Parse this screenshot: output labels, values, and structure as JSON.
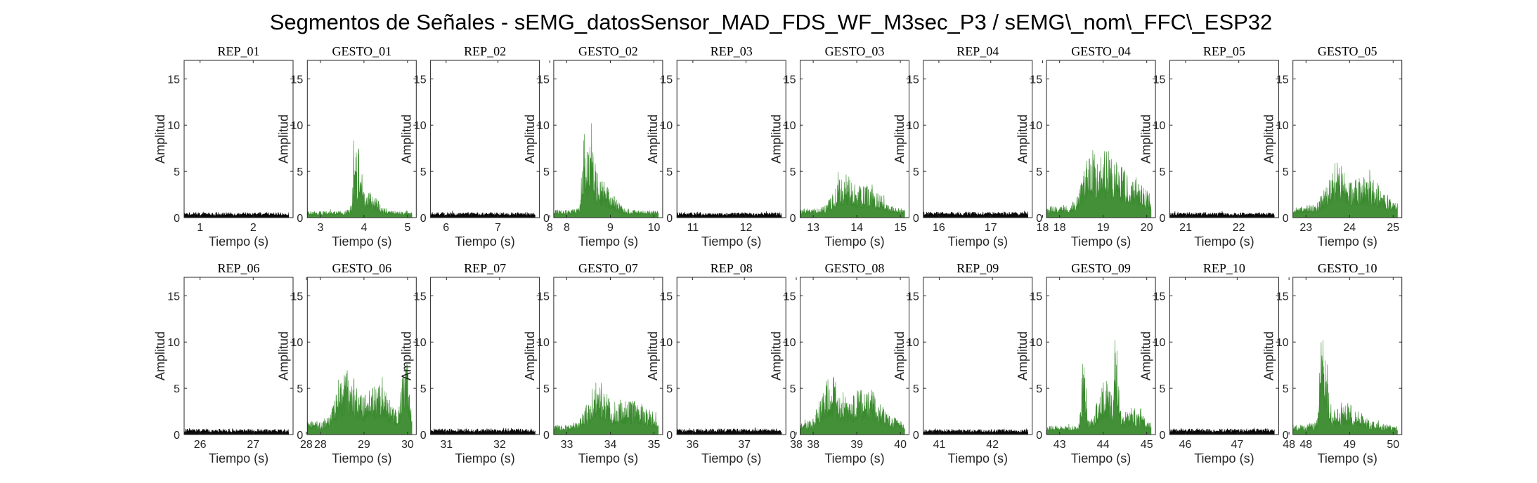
{
  "figure": {
    "title": "Segmentos de Señales - sEMG_datosSensor_MAD_FDS_WF_M3sec_P3 / sEMG\\_nom\\_FFC\\_ESP32",
    "colors": {
      "rep": "#000000",
      "gesture": "#3a8a2e",
      "axis": "#262626"
    }
  },
  "chart_data": [
    {
      "type": "area",
      "title": "REP_01",
      "xlabel": "Tiempo (s)",
      "ylabel": "Amplitud",
      "xlim": [
        0.7,
        2.75
      ],
      "ylim": [
        0,
        17
      ],
      "xticks": [
        1,
        2
      ],
      "yticks": [
        0,
        5,
        10,
        15
      ],
      "color": "#000000",
      "baseline": 0.5,
      "noise": 0.5,
      "bursts": []
    },
    {
      "type": "area",
      "title": "GESTO_01",
      "xlabel": "Tiempo (s)",
      "ylabel": "Amplitud",
      "xlim": [
        2.7,
        5.2
      ],
      "ylim": [
        0,
        17
      ],
      "xticks": [
        3,
        4,
        5
      ],
      "yticks": [
        0,
        5,
        10,
        15
      ],
      "color": "#3a8a2e",
      "baseline": 0.6,
      "noise": 0.7,
      "bursts": [
        {
          "x": 3.78,
          "w": 0.05,
          "a": 10.2
        },
        {
          "x": 3.9,
          "w": 0.06,
          "a": 6.8
        },
        {
          "x": 4.1,
          "w": 0.3,
          "a": 2.2
        }
      ]
    },
    {
      "type": "area",
      "title": "REP_02",
      "xlabel": "Tiempo (s)",
      "ylabel": "Amplitud",
      "xlim": [
        5.7,
        7.8
      ],
      "ylim": [
        0,
        17
      ],
      "xticks": [
        6,
        7,
        8
      ],
      "yticks": [
        0,
        5,
        10,
        15
      ],
      "color": "#000000",
      "baseline": 0.5,
      "noise": 0.5,
      "bursts": []
    },
    {
      "type": "area",
      "title": "GESTO_02",
      "xlabel": "Tiempo (s)",
      "ylabel": "Amplitud",
      "xlim": [
        7.7,
        10.2
      ],
      "ylim": [
        0,
        17
      ],
      "xticks": [
        8,
        9,
        10
      ],
      "yticks": [
        0,
        5,
        10,
        15
      ],
      "color": "#3a8a2e",
      "baseline": 0.7,
      "noise": 0.8,
      "bursts": [
        {
          "x": 8.4,
          "w": 0.06,
          "a": 8.3
        },
        {
          "x": 8.55,
          "w": 0.1,
          "a": 6.8
        },
        {
          "x": 8.8,
          "w": 0.35,
          "a": 3.2
        }
      ]
    },
    {
      "type": "area",
      "title": "REP_03",
      "xlabel": "Tiempo (s)",
      "ylabel": "Amplitud",
      "xlim": [
        10.7,
        12.75
      ],
      "ylim": [
        0,
        17
      ],
      "xticks": [
        11,
        12
      ],
      "yticks": [
        0,
        5,
        10,
        15
      ],
      "color": "#000000",
      "baseline": 0.5,
      "noise": 0.5,
      "bursts": []
    },
    {
      "type": "area",
      "title": "GESTO_03",
      "xlabel": "Tiempo (s)",
      "ylabel": "Amplitud",
      "xlim": [
        12.7,
        15.2
      ],
      "ylim": [
        0,
        17
      ],
      "xticks": [
        13,
        14,
        15
      ],
      "yticks": [
        0,
        5,
        10,
        15
      ],
      "color": "#3a8a2e",
      "baseline": 0.8,
      "noise": 1.2,
      "bursts": [
        {
          "x": 13.7,
          "w": 0.3,
          "a": 3.6
        },
        {
          "x": 14.3,
          "w": 0.35,
          "a": 2.6
        }
      ]
    },
    {
      "type": "area",
      "title": "REP_04",
      "xlabel": "Tiempo (s)",
      "ylabel": "Amplitud",
      "xlim": [
        15.7,
        17.8
      ],
      "ylim": [
        0,
        17
      ],
      "xticks": [
        16,
        17,
        18
      ],
      "yticks": [
        0,
        5,
        10,
        15
      ],
      "color": "#000000",
      "baseline": 0.55,
      "noise": 0.6,
      "bursts": []
    },
    {
      "type": "area",
      "title": "GESTO_04",
      "xlabel": "Tiempo (s)",
      "ylabel": "Amplitud",
      "xlim": [
        17.7,
        20.2
      ],
      "ylim": [
        0,
        17
      ],
      "xticks": [
        18,
        19,
        20
      ],
      "yticks": [
        0,
        5,
        10,
        15
      ],
      "color": "#3a8a2e",
      "baseline": 1.0,
      "noise": 1.5,
      "bursts": [
        {
          "x": 18.7,
          "w": 0.25,
          "a": 6.5
        },
        {
          "x": 19.15,
          "w": 0.3,
          "a": 5.5
        },
        {
          "x": 19.7,
          "w": 0.4,
          "a": 3.2
        }
      ]
    },
    {
      "type": "area",
      "title": "REP_05",
      "xlabel": "Tiempo (s)",
      "ylabel": "Amplitud",
      "xlim": [
        20.7,
        22.75
      ],
      "ylim": [
        0,
        17
      ],
      "xticks": [
        21,
        22
      ],
      "yticks": [
        0,
        5,
        10,
        15
      ],
      "color": "#000000",
      "baseline": 0.5,
      "noise": 0.5,
      "bursts": []
    },
    {
      "type": "area",
      "title": "GESTO_05",
      "xlabel": "Tiempo (s)",
      "ylabel": "Amplitud",
      "xlim": [
        22.7,
        25.2
      ],
      "ylim": [
        0,
        17
      ],
      "xticks": [
        23,
        24,
        25
      ],
      "yticks": [
        0,
        5,
        10,
        15
      ],
      "color": "#3a8a2e",
      "baseline": 1.0,
      "noise": 1.4,
      "bursts": [
        {
          "x": 23.7,
          "w": 0.3,
          "a": 4.5
        },
        {
          "x": 24.4,
          "w": 0.5,
          "a": 3.2
        }
      ]
    },
    {
      "type": "area",
      "title": "REP_06",
      "xlabel": "Tiempo (s)",
      "ylabel": "Amplitud",
      "xlim": [
        25.7,
        27.75
      ],
      "ylim": [
        0,
        17
      ],
      "xticks": [
        26,
        27,
        28
      ],
      "yticks": [
        0,
        5,
        10,
        15
      ],
      "color": "#000000",
      "baseline": 0.55,
      "noise": 0.5,
      "bursts": []
    },
    {
      "type": "area",
      "title": "GESTO_06",
      "xlabel": "Tiempo (s)",
      "ylabel": "Amplitud",
      "xlim": [
        27.7,
        30.2
      ],
      "ylim": [
        0,
        17
      ],
      "xticks": [
        28,
        29,
        30
      ],
      "yticks": [
        0,
        5,
        10,
        15
      ],
      "color": "#3a8a2e",
      "baseline": 1.2,
      "noise": 1.6,
      "bursts": [
        {
          "x": 28.6,
          "w": 0.3,
          "a": 5.5
        },
        {
          "x": 29.3,
          "w": 0.4,
          "a": 4.0
        },
        {
          "x": 29.95,
          "w": 0.1,
          "a": 8.0
        }
      ]
    },
    {
      "type": "area",
      "title": "REP_07",
      "xlabel": "Tiempo (s)",
      "ylabel": "Amplitud",
      "xlim": [
        30.7,
        32.75
      ],
      "ylim": [
        0,
        17
      ],
      "xticks": [
        31,
        32
      ],
      "yticks": [
        0,
        5,
        10,
        15
      ],
      "color": "#000000",
      "baseline": 0.55,
      "noise": 0.6,
      "bursts": []
    },
    {
      "type": "area",
      "title": "GESTO_07",
      "xlabel": "Tiempo (s)",
      "ylabel": "Amplitud",
      "xlim": [
        32.7,
        35.2
      ],
      "ylim": [
        0,
        17
      ],
      "xticks": [
        33,
        34,
        35
      ],
      "yticks": [
        0,
        5,
        10,
        15
      ],
      "color": "#3a8a2e",
      "baseline": 0.9,
      "noise": 1.2,
      "bursts": [
        {
          "x": 33.7,
          "w": 0.3,
          "a": 4.2
        },
        {
          "x": 34.5,
          "w": 0.6,
          "a": 2.8
        }
      ]
    },
    {
      "type": "area",
      "title": "REP_08",
      "xlabel": "Tiempo (s)",
      "ylabel": "Amplitud",
      "xlim": [
        35.7,
        37.8
      ],
      "ylim": [
        0,
        17
      ],
      "xticks": [
        36,
        37,
        38
      ],
      "yticks": [
        0,
        5,
        10,
        15
      ],
      "color": "#000000",
      "baseline": 0.55,
      "noise": 0.6,
      "bursts": []
    },
    {
      "type": "area",
      "title": "GESTO_08",
      "xlabel": "Tiempo (s)",
      "ylabel": "Amplitud",
      "xlim": [
        37.7,
        40.2
      ],
      "ylim": [
        0,
        17
      ],
      "xticks": [
        38,
        39,
        40
      ],
      "yticks": [
        0,
        5,
        10,
        15
      ],
      "color": "#3a8a2e",
      "baseline": 1.0,
      "noise": 1.4,
      "bursts": [
        {
          "x": 38.4,
          "w": 0.3,
          "a": 5.0
        },
        {
          "x": 39.2,
          "w": 0.5,
          "a": 4.0
        }
      ]
    },
    {
      "type": "area",
      "title": "REP_09",
      "xlabel": "Tiempo (s)",
      "ylabel": "Amplitud",
      "xlim": [
        40.7,
        42.75
      ],
      "ylim": [
        0,
        17
      ],
      "xticks": [
        41,
        42
      ],
      "yticks": [
        0,
        5,
        10,
        15
      ],
      "color": "#000000",
      "baseline": 0.5,
      "noise": 0.5,
      "bursts": []
    },
    {
      "type": "area",
      "title": "GESTO_09",
      "xlabel": "Tiempo (s)",
      "ylabel": "Amplitud",
      "xlim": [
        42.7,
        45.2
      ],
      "ylim": [
        0,
        17
      ],
      "xticks": [
        43,
        44,
        45
      ],
      "yticks": [
        0,
        5,
        10,
        15
      ],
      "color": "#3a8a2e",
      "baseline": 0.8,
      "noise": 1.1,
      "bursts": [
        {
          "x": 43.55,
          "w": 0.06,
          "a": 10.0
        },
        {
          "x": 44.05,
          "w": 0.25,
          "a": 5.0
        },
        {
          "x": 44.3,
          "w": 0.06,
          "a": 9.5
        },
        {
          "x": 44.7,
          "w": 0.3,
          "a": 2.0
        }
      ]
    },
    {
      "type": "area",
      "title": "REP_10",
      "xlabel": "Tiempo (s)",
      "ylabel": "Amplitud",
      "xlim": [
        45.7,
        47.8
      ],
      "ylim": [
        0,
        17
      ],
      "xticks": [
        46,
        47,
        48
      ],
      "yticks": [
        0,
        5,
        10,
        15
      ],
      "color": "#000000",
      "baseline": 0.55,
      "noise": 0.6,
      "bursts": []
    },
    {
      "type": "area",
      "title": "GESTO_10",
      "xlabel": "Tiempo (s)",
      "ylabel": "Amplitud",
      "xlim": [
        47.7,
        50.2
      ],
      "ylim": [
        0,
        17
      ],
      "xticks": [
        48,
        49,
        50
      ],
      "yticks": [
        0,
        5,
        10,
        15
      ],
      "color": "#3a8a2e",
      "baseline": 0.9,
      "noise": 1.0,
      "bursts": [
        {
          "x": 48.35,
          "w": 0.05,
          "a": 11.5
        },
        {
          "x": 48.45,
          "w": 0.08,
          "a": 7.0
        },
        {
          "x": 48.9,
          "w": 0.5,
          "a": 2.5
        }
      ]
    }
  ]
}
